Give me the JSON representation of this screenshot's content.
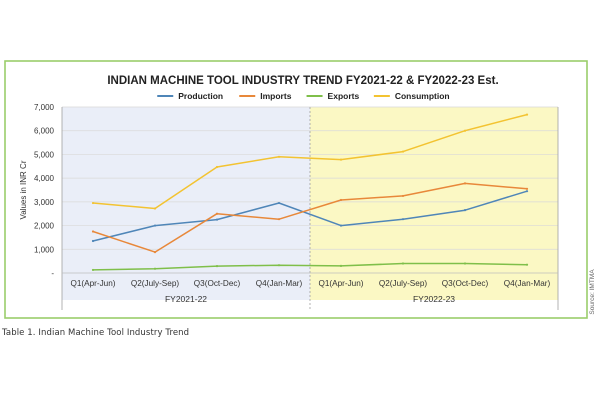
{
  "chart_data": {
    "type": "line",
    "title": "INDIAN MACHINE TOOL INDUSTRY TREND FY2021-22 & FY2022-23 Est.",
    "ylabel": "Values in INR Cr",
    "xlabel": "",
    "ylim": [
      0,
      7000
    ],
    "yticks": [
      "-",
      "1,000",
      "2,000",
      "3,000",
      "4,000",
      "5,000",
      "6,000",
      "7,000"
    ],
    "categories": [
      "Q1(Apr-Jun)",
      "Q2(July-Sep)",
      "Q3(Oct-Dec)",
      "Q4(Jan-Mar)",
      "Q1(Apr-Jun)",
      "Q2(July-Sep)",
      "Q3(Oct-Dec)",
      "Q4(Jan-Mar)"
    ],
    "groups": [
      {
        "label": "FY2021-22",
        "color": "#eaeef8"
      },
      {
        "label": "FY2022-23",
        "color": "#fbf8c4"
      }
    ],
    "series": [
      {
        "name": "Production",
        "color": "#4f86b8",
        "values": [
          1350,
          2000,
          2250,
          2950,
          2000,
          2270,
          2650,
          3450
        ]
      },
      {
        "name": "Imports",
        "color": "#e8883a",
        "values": [
          1750,
          880,
          2500,
          2270,
          3080,
          3250,
          3780,
          3550
        ]
      },
      {
        "name": "Exports",
        "color": "#7fbf4a",
        "values": [
          130,
          180,
          290,
          330,
          300,
          400,
          400,
          350
        ]
      },
      {
        "name": "Consumption",
        "color": "#f3c331",
        "values": [
          2950,
          2720,
          4470,
          4900,
          4780,
          5120,
          6000,
          6680
        ]
      }
    ],
    "grid": true,
    "legend": "top-center"
  },
  "source": "Source: IMTMA",
  "caption": "Table 1. Indian Machine Tool Industry Trend",
  "colors": {
    "frame_border": "#9acd6a",
    "gridline": "#d9d9d9",
    "divider": "#a0a0a0"
  }
}
